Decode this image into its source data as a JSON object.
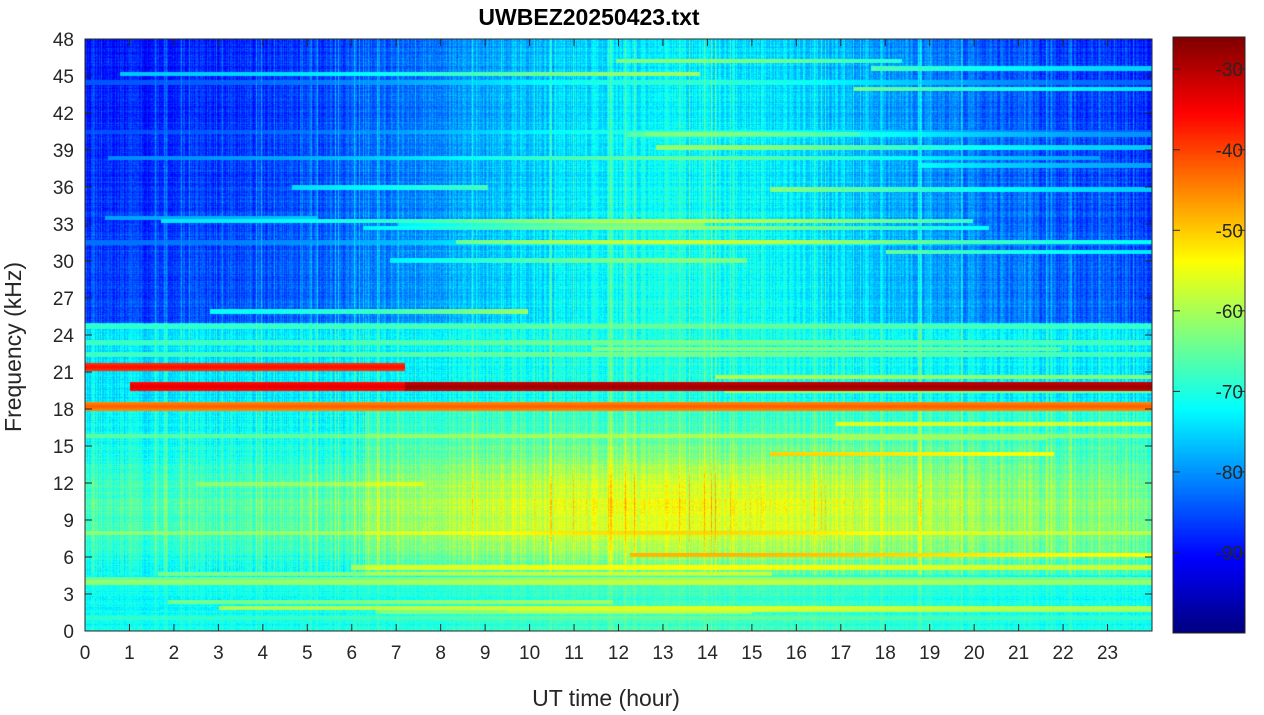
{
  "chart_data": {
    "type": "heatmap",
    "title": "UWBEZ20250423.txt",
    "xlabel": "UT time (hour)",
    "ylabel": "Frequency (kHz)",
    "xlim": [
      0,
      24
    ],
    "ylim": [
      0,
      48
    ],
    "x_ticks": [
      "0",
      "1",
      "2",
      "3",
      "4",
      "5",
      "6",
      "7",
      "8",
      "9",
      "10",
      "11",
      "12",
      "13",
      "14",
      "15",
      "16",
      "17",
      "18",
      "19",
      "20",
      "21",
      "22",
      "23"
    ],
    "y_ticks": [
      "0",
      "3",
      "6",
      "9",
      "12",
      "15",
      "18",
      "21",
      "24",
      "27",
      "30",
      "33",
      "36",
      "39",
      "42",
      "45",
      "48"
    ],
    "colorbar": {
      "colormap": "jet",
      "range": [
        -100,
        -26
      ],
      "ticks": [
        "-30",
        "-40",
        "-50",
        "-60",
        "-70",
        "-80",
        "-90"
      ]
    },
    "features": [
      {
        "name": "strong narrowband transmitter",
        "freq_khz": 19.8,
        "start_hour": 7.2,
        "end_hour": 24,
        "level_db": -28
      },
      {
        "name": "narrowband transmitter",
        "freq_khz": 19.8,
        "start_hour": 1.0,
        "end_hour": 7.2,
        "level_db": -33
      },
      {
        "name": "narrowband transmitter",
        "freq_khz": 21.4,
        "start_hour": 0,
        "end_hour": 7.2,
        "level_db": -36
      },
      {
        "name": "narrowband transmitter",
        "freq_khz": 18.2,
        "start_hour": 0,
        "end_hour": 24,
        "level_db": -42
      },
      {
        "name": "broadband daytime noise",
        "freq_range_khz": [
          5,
          16
        ],
        "start_hour": 8.5,
        "end_hour": 19.5,
        "level_db": -50
      }
    ]
  }
}
